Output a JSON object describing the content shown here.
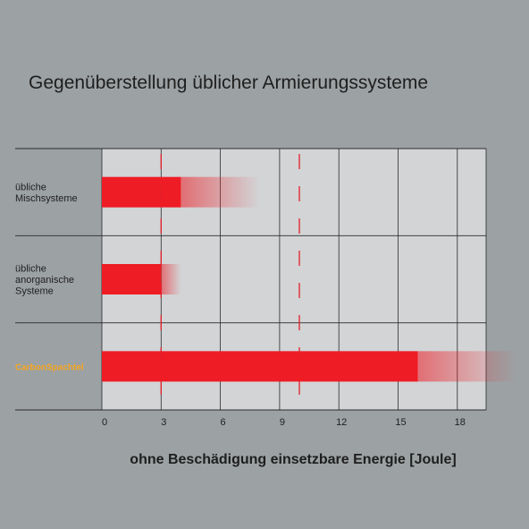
{
  "chart_data": {
    "type": "bar",
    "title": "Gegenüberstellung üblicher Armierungssysteme",
    "xlabel": "ohne Beschädigung einsetzbare Energie [Joule]",
    "ylabel": "",
    "xlim": [
      0,
      19.5
    ],
    "xticks": [
      0,
      3,
      6,
      9,
      12,
      15,
      18
    ],
    "reference_lines": [
      3,
      10
    ],
    "grid": true,
    "categories": [
      {
        "lines": [
          "übliche",
          "Mischsysteme"
        ],
        "highlight": false
      },
      {
        "lines": [
          "übliche",
          "anorganische",
          "Systeme"
        ],
        "highlight": false
      },
      {
        "lines": [
          "CarbonSpachtel"
        ],
        "highlight": true
      }
    ],
    "values": [
      4,
      3,
      16
    ],
    "range_max": [
      8,
      4,
      21
    ],
    "colors": {
      "bar": "#ee1c24",
      "highlight_label": "#f5a623",
      "reference_line": "#e4202a",
      "plot_bg": "#d2d4d6",
      "grid": "#2b2b2b"
    }
  }
}
